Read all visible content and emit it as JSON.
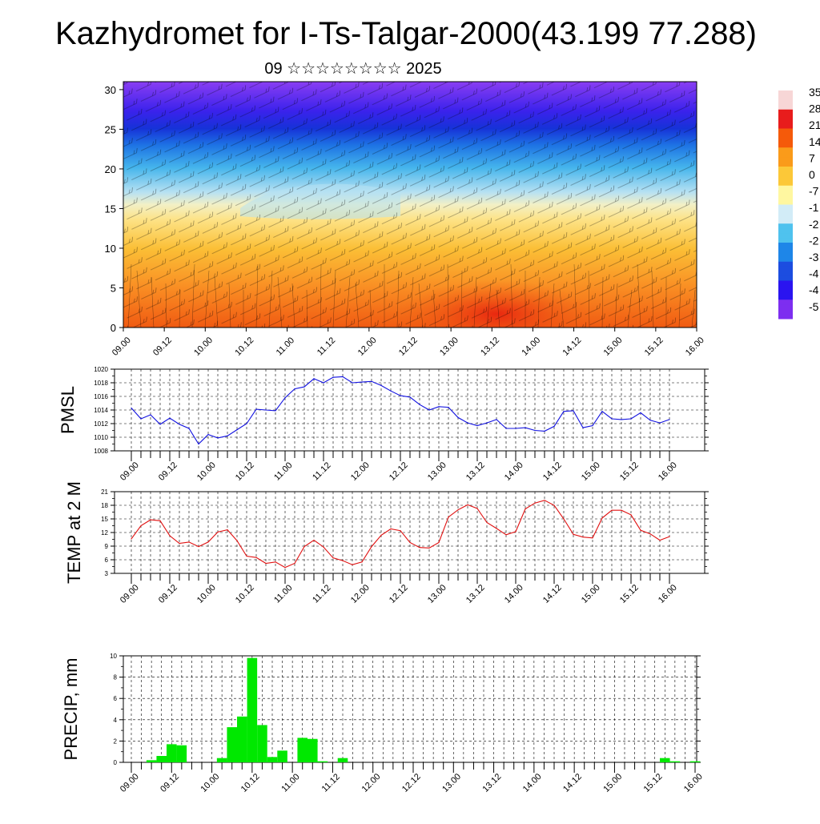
{
  "header": {
    "title": "Kazhydromet for I-Ts-Talgar-2000(43.199 77.288)",
    "subtitle": "09 ☆☆☆☆☆☆☆☆ 2025"
  },
  "time_ticks": [
    "09.00",
    "09.12",
    "10.00",
    "10.12",
    "11.00",
    "11.12",
    "12.00",
    "12.12",
    "13.00",
    "13.12",
    "14.00",
    "14.12",
    "15.00",
    "15.12",
    "16.00"
  ],
  "chart_data": [
    {
      "id": "cross_section",
      "type": "heatmap",
      "title": "Kazhydromet for I-Ts-Talgar-2000(43.199 77.288)",
      "subtitle": "09 ☆☆☆☆☆☆☆☆ 2025",
      "x_ticks": [
        "09.00",
        "09.12",
        "10.00",
        "10.12",
        "11.00",
        "11.12",
        "12.00",
        "12.12",
        "13.00",
        "13.12",
        "14.00",
        "14.12",
        "15.00",
        "15.12",
        "16.00"
      ],
      "y_ticks": [
        0,
        5,
        10,
        15,
        20,
        25,
        30
      ],
      "ylim": [
        0,
        31
      ],
      "colorbar_labels": [
        "35",
        "28",
        "21",
        "14",
        "7",
        "0",
        "-7",
        "-1",
        "-2",
        "-2",
        "-3",
        "-4",
        "-4",
        "-5"
      ],
      "colorbar_colors": [
        "#f7d6d6",
        "#e81c1c",
        "#f55a0a",
        "#fa9b1a",
        "#fcc838",
        "#fff7a0",
        "#d2ecf7",
        "#4fc2ee",
        "#1e86e8",
        "#1c4de0",
        "#2a14f0",
        "#7d2ef0"
      ],
      "field_description": "Vertical cross-section; positive values (orange/red) below ~15 km, negative values (blue/purple) above, with wind barbs",
      "grid": false
    },
    {
      "id": "pmsl",
      "type": "line",
      "ylabel": "PMSL",
      "ylim": [
        1008,
        1020
      ],
      "y_ticks": [
        1008,
        1010,
        1012,
        1014,
        1016,
        1018,
        1020
      ],
      "x_ticks": [
        "09.00",
        "09.12",
        "10.00",
        "10.12",
        "11.00",
        "11.12",
        "12.00",
        "12.12",
        "13.00",
        "13.12",
        "14.00",
        "14.12",
        "15.00",
        "15.12",
        "16.00"
      ],
      "step_hours": 3,
      "color": "#1010e0",
      "values": [
        1014.3,
        1012.7,
        1013.3,
        1011.9,
        1012.8,
        1011.9,
        1011.3,
        1009.0,
        1010.4,
        1009.9,
        1010.2,
        1011.1,
        1012.0,
        1014.1,
        1014.0,
        1013.9,
        1015.8,
        1017.1,
        1017.4,
        1018.6,
        1018.0,
        1018.8,
        1018.9,
        1018.0,
        1018.1,
        1018.2,
        1017.6,
        1016.8,
        1016.1,
        1015.9,
        1014.8,
        1014.0,
        1014.5,
        1014.4,
        1012.9,
        1012.1,
        1011.7,
        1012.1,
        1012.6,
        1011.3,
        1011.3,
        1011.4,
        1011.0,
        1010.9,
        1011.6,
        1013.8,
        1013.9,
        1011.4,
        1011.7,
        1013.8,
        1012.7,
        1012.6,
        1012.7,
        1013.6,
        1012.5,
        1012.1,
        1012.6
      ]
    },
    {
      "id": "temp2m",
      "type": "line",
      "ylabel": "TEMP at 2 M",
      "ylim": [
        3,
        21
      ],
      "y_ticks": [
        3,
        6,
        9,
        12,
        15,
        18,
        21
      ],
      "x_ticks": [
        "09.00",
        "09.12",
        "10.00",
        "10.12",
        "11.00",
        "11.12",
        "12.00",
        "12.12",
        "13.00",
        "13.12",
        "14.00",
        "14.12",
        "15.00",
        "15.12",
        "16.00"
      ],
      "step_hours": 3,
      "color": "#e01010",
      "values": [
        10.6,
        13.5,
        14.8,
        14.6,
        11.3,
        9.6,
        9.9,
        8.9,
        9.9,
        12.1,
        12.6,
        10.2,
        6.8,
        6.5,
        5.2,
        5.5,
        4.3,
        5.2,
        8.9,
        10.3,
        8.8,
        6.4,
        5.8,
        4.9,
        5.5,
        8.9,
        11.4,
        12.8,
        12.4,
        9.8,
        8.7,
        8.6,
        9.8,
        15.4,
        17.0,
        18.1,
        17.3,
        14.2,
        12.9,
        11.5,
        12.2,
        17.2,
        18.5,
        19.1,
        18.0,
        15.0,
        11.6,
        11.0,
        10.8,
        15.2,
        16.9,
        16.9,
        15.9,
        12.5,
        11.7,
        10.3,
        11.1
      ]
    },
    {
      "id": "precip",
      "type": "bar",
      "ylabel": "PRECIP, mm",
      "ylim": [
        0,
        10
      ],
      "y_ticks": [
        0,
        2,
        4,
        6,
        8,
        10
      ],
      "x_ticks": [
        "09.00",
        "09.12",
        "10.00",
        "10.12",
        "11.00",
        "11.12",
        "12.00",
        "12.12",
        "13.00",
        "13.12",
        "14.00",
        "14.12",
        "15.00",
        "15.12",
        "16.00"
      ],
      "step_hours": 3,
      "color": "#00e800",
      "values": [
        0,
        0,
        0.2,
        0.6,
        1.7,
        1.6,
        0,
        0,
        0,
        0.4,
        3.3,
        4.3,
        9.8,
        3.5,
        0.5,
        1.1,
        0,
        2.3,
        2.2,
        0.1,
        0,
        0.4,
        0,
        0,
        0,
        0,
        0,
        0,
        0,
        0,
        0,
        0,
        0,
        0,
        0,
        0,
        0,
        0,
        0,
        0,
        0,
        0,
        0,
        0,
        0,
        0,
        0,
        0,
        0,
        0,
        0,
        0,
        0,
        0.4,
        0.1,
        0,
        0.1
      ]
    }
  ]
}
